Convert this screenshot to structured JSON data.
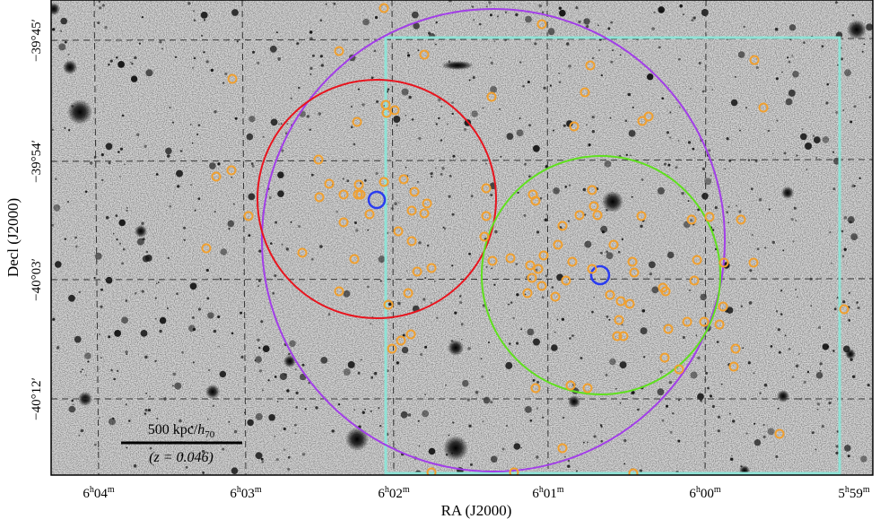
{
  "axes": {
    "xlabel": "RA (J2000)",
    "ylabel": "Decl (J2000)",
    "x_ticks": [
      {
        "h": "6",
        "m": "04"
      },
      {
        "h": "6",
        "m": "03"
      },
      {
        "h": "6",
        "m": "02"
      },
      {
        "h": "6",
        "m": "01"
      },
      {
        "h": "6",
        "m": "00"
      },
      {
        "h": "5",
        "m": "59"
      }
    ],
    "y_ticks": [
      "−39°45′",
      "−39°54′",
      "−40°03′",
      "−40°12′"
    ]
  },
  "scale_bar": {
    "distance": "500 kpc/",
    "unit_h": "h",
    "unit_sub": "70",
    "redshift": "(z = 0.046)"
  },
  "colors": {
    "background_sky": "#d6d6d6",
    "red_circle": "#e8141e",
    "green_circle": "#5fe01e",
    "purple_circle": "#a23ee8",
    "cyan_box": "#8fe3d6",
    "blue_markers": "#2a3cf0",
    "members": "#f0a030",
    "grid": "#333333"
  }
}
